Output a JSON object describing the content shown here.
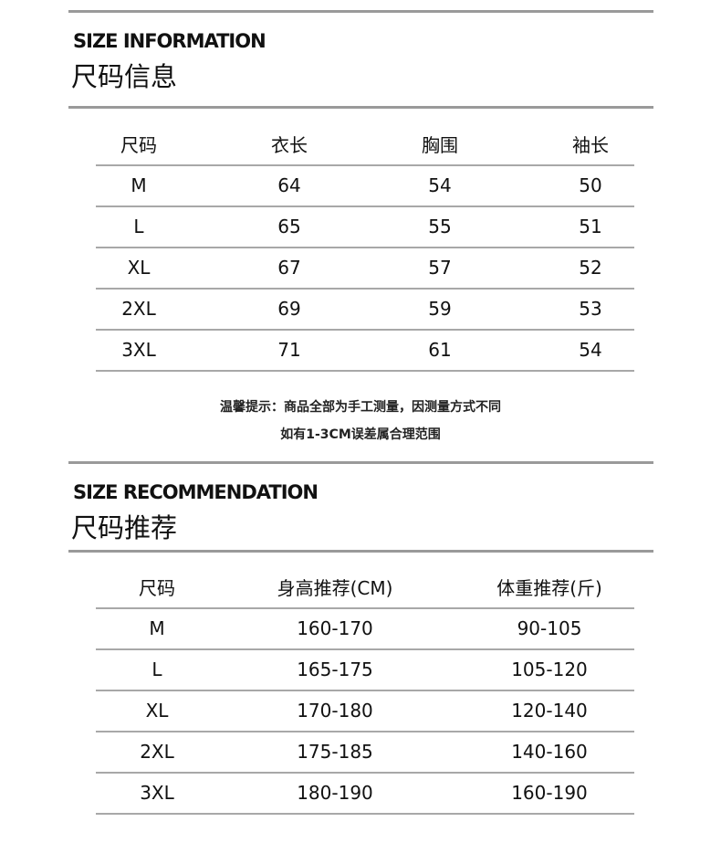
{
  "size_information": {
    "title_en": "SIZE INFORMATION",
    "title_zh": "尺码信息",
    "headers": [
      "尺码",
      "衣长",
      "胸围",
      "袖长"
    ],
    "rows": [
      [
        "M",
        "64",
        "54",
        "50"
      ],
      [
        "L",
        "65",
        "55",
        "51"
      ],
      [
        "XL",
        "67",
        "57",
        "52"
      ],
      [
        "2XL",
        "69",
        "59",
        "53"
      ],
      [
        "3XL",
        "71",
        "61",
        "54"
      ]
    ],
    "note_line1": "温馨提示：商品全部为手工测量，因测量方式不同",
    "note_line2": "如有1-3CM误差属合理范围"
  },
  "size_recommendation": {
    "title_en": "SIZE RECOMMENDATION",
    "title_zh": "尺码推荐",
    "headers": [
      "尺码",
      "身高推荐(CM)",
      "体重推荐(斤)"
    ],
    "rows": [
      [
        "M",
        "160-170",
        "90-105"
      ],
      [
        "L",
        "165-175",
        "105-120"
      ],
      [
        "XL",
        "170-180",
        "120-140"
      ],
      [
        "2XL",
        "175-185",
        "140-160"
      ],
      [
        "3XL",
        "180-190",
        "160-190"
      ]
    ]
  }
}
